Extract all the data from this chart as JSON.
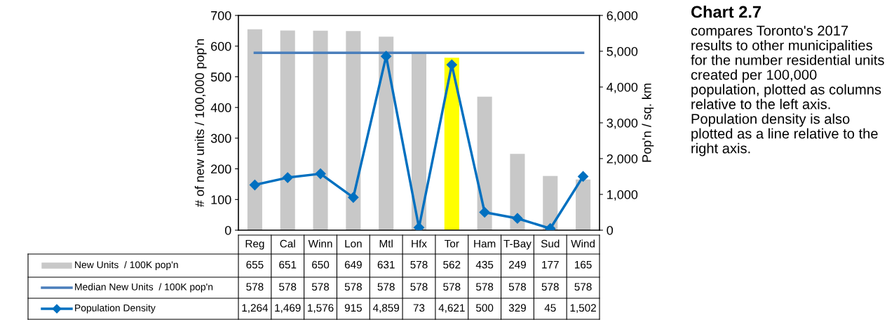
{
  "chart_data": {
    "type": "bar",
    "categories": [
      "Reg",
      "Cal",
      "Winn",
      "Lon",
      "Mtl",
      "Hfx",
      "Tor",
      "Ham",
      "T-Bay",
      "Sud",
      "Wind"
    ],
    "series": [
      {
        "name": "New Units  / 100K pop'n",
        "color": "#c8c8c8",
        "colors": [
          "#c8c8c8",
          "#c8c8c8",
          "#c8c8c8",
          "#c8c8c8",
          "#c8c8c8",
          "#c8c8c8",
          "#ffff00",
          "#c8c8c8",
          "#c8c8c8",
          "#c8c8c8",
          "#c8c8c8"
        ],
        "values": [
          655,
          651,
          650,
          649,
          631,
          578,
          562,
          435,
          249,
          177,
          165
        ],
        "value_labels": [
          "655",
          "651",
          "650",
          "649",
          "631",
          "578",
          "562",
          "435",
          "249",
          "177",
          "165"
        ]
      },
      {
        "name": "Median New Units  / 100K pop'n",
        "type": "line",
        "color": "#4a7ebb",
        "marker": "none",
        "values": [
          578,
          578,
          578,
          578,
          578,
          578,
          578,
          578,
          578,
          578,
          578
        ],
        "value_labels": [
          "578",
          "578",
          "578",
          "578",
          "578",
          "578",
          "578",
          "578",
          "578",
          "578",
          "578"
        ]
      },
      {
        "name": "Population Density",
        "type": "line",
        "axis": "y2",
        "color": "#0070c0",
        "marker": "diamond",
        "values": [
          1264,
          1469,
          1576,
          915,
          4859,
          73,
          4621,
          500,
          329,
          45,
          1502
        ],
        "value_labels": [
          "1,264",
          "1,469",
          "1,576",
          "915",
          "4,859",
          "73",
          "4,621",
          "500",
          "329",
          "45",
          "1,502"
        ]
      }
    ],
    "ylabel": "# of new units / 100,000 pop'n",
    "y2label": "Pop'n / sq. km",
    "ylim": [
      0,
      700
    ],
    "yticks": [
      0,
      100,
      200,
      300,
      400,
      500,
      600,
      700
    ],
    "y2lim": [
      0,
      6000
    ],
    "y2ticks": [
      {
        "value": 0,
        "label": "0"
      },
      {
        "value": 1000,
        "label": "1,000"
      },
      {
        "value": 2000,
        "label": "2,000"
      },
      {
        "value": 3000,
        "label": "3,000"
      },
      {
        "value": 4000,
        "label": "4,000"
      },
      {
        "value": 5000,
        "label": "5,000"
      },
      {
        "value": 6000,
        "label": "6,000"
      }
    ],
    "legend": "bottom",
    "grid": false,
    "annotations": [
      "Chart 2.7",
      "compares Toronto's 2017 results to other municipalities for the number residential units created per 100,000 population, plotted as columns relative to the left axis. Population density is also plotted as a line relative to the right axis."
    ]
  }
}
